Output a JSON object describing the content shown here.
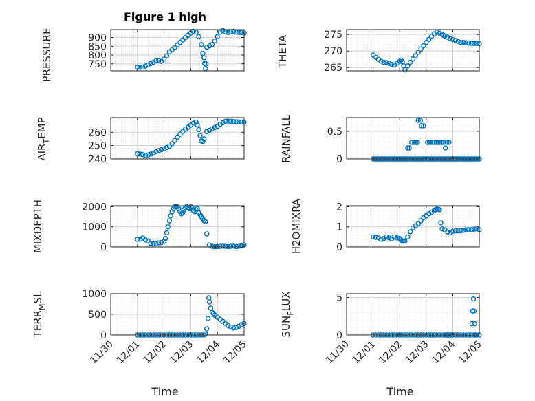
{
  "figure": {
    "title": "Figure 1 high"
  },
  "chart_data": [
    {
      "id": "pressure",
      "type": "scatter",
      "ylabel": "PRESSURE",
      "title": "Figure 1 high",
      "xlabel": "",
      "xlim": [
        "11/30",
        "12/05"
      ],
      "ylim": [
        710,
        945
      ],
      "yticks": [
        750,
        800,
        850,
        900
      ],
      "marker": "circle-open",
      "color": "#0072BD",
      "grid": "on",
      "x": [
        1.0,
        1.1,
        1.2,
        1.3,
        1.4,
        1.5,
        1.6,
        1.7,
        1.8,
        1.9,
        2.0,
        2.1,
        2.2,
        2.3,
        2.4,
        2.5,
        2.6,
        2.7,
        2.8,
        2.9,
        3.0,
        3.1,
        3.2,
        3.3,
        3.4,
        3.45,
        3.5,
        3.52,
        3.55,
        3.57,
        3.6,
        3.7,
        3.8,
        3.9,
        4.0,
        4.1,
        4.2,
        4.3,
        4.4,
        4.5,
        4.6,
        4.7,
        4.8,
        4.9,
        5.0
      ],
      "y": [
        730,
        730,
        732,
        737,
        744,
        751,
        759,
        767,
        768,
        765,
        777,
        795,
        818,
        830,
        843,
        858,
        872,
        886,
        900,
        913,
        925,
        935,
        930,
        905,
        860,
        810,
        785,
        752,
        722,
        750,
        845,
        852,
        860,
        880,
        905,
        930,
        940,
        932,
        928,
        932,
        935,
        930,
        928,
        928,
        925
      ]
    },
    {
      "id": "theta",
      "type": "scatter",
      "ylabel": "THETA",
      "xlim": [
        "11/30",
        "12/05"
      ],
      "ylim": [
        264,
        276.5
      ],
      "yticks": [
        265,
        270,
        275
      ],
      "marker": "circle-open",
      "color": "#0072BD",
      "grid": "on",
      "x": [
        1.0,
        1.1,
        1.2,
        1.3,
        1.4,
        1.5,
        1.6,
        1.7,
        1.8,
        1.9,
        2.0,
        2.05,
        2.1,
        2.15,
        2.2,
        2.3,
        2.4,
        2.5,
        2.6,
        2.7,
        2.8,
        2.9,
        3.0,
        3.1,
        3.2,
        3.3,
        3.4,
        3.5,
        3.6,
        3.65,
        3.7,
        3.8,
        3.9,
        4.0,
        4.1,
        4.2,
        4.3,
        4.4,
        4.5,
        4.6,
        4.7,
        4.8,
        4.9,
        5.0
      ],
      "y": [
        268.8,
        268.1,
        267.5,
        266.9,
        266.6,
        266.5,
        266.3,
        266.0,
        265.8,
        266.3,
        266.9,
        267.3,
        266.8,
        265.5,
        264.3,
        265.5,
        266.6,
        267.6,
        268.6,
        269.6,
        270.6,
        271.6,
        272.6,
        273.5,
        274.5,
        275.2,
        275.8,
        275.4,
        275.1,
        274.8,
        274.5,
        274.2,
        273.8,
        273.5,
        273.2,
        272.9,
        272.6,
        272.6,
        272.5,
        272.4,
        272.3,
        272.3,
        272.3,
        272.2
      ]
    },
    {
      "id": "air_temp",
      "type": "scatter",
      "ylabel": "AIR_TEMP",
      "xlim": [
        "11/30",
        "12/05"
      ],
      "ylim": [
        240,
        271
      ],
      "yticks": [
        240,
        250,
        260
      ],
      "marker": "circle-open",
      "color": "#0072BD",
      "grid": "on",
      "x": [
        1.0,
        1.1,
        1.2,
        1.3,
        1.4,
        1.5,
        1.6,
        1.7,
        1.8,
        1.9,
        2.0,
        2.1,
        2.2,
        2.3,
        2.4,
        2.5,
        2.6,
        2.7,
        2.8,
        2.9,
        3.0,
        3.1,
        3.2,
        3.25,
        3.3,
        3.35,
        3.4,
        3.45,
        3.5,
        3.6,
        3.7,
        3.8,
        3.9,
        4.0,
        4.1,
        4.2,
        4.3,
        4.4,
        4.5,
        4.6,
        4.7,
        4.8,
        4.9,
        5.0
      ],
      "y": [
        244,
        243.6,
        243.2,
        242.8,
        243,
        243.6,
        244.5,
        245.5,
        246.3,
        246.9,
        247.6,
        248.6,
        249.5,
        251.5,
        254,
        256.3,
        258.5,
        260.5,
        262.3,
        263.8,
        265.3,
        266.8,
        267.6,
        265.5,
        262,
        257.5,
        253.5,
        253,
        255,
        260.5,
        261.5,
        262.5,
        263.5,
        264.5,
        266,
        267.2,
        268.3,
        268.4,
        268.2,
        268.1,
        267.9,
        267.8,
        267.7,
        267.6
      ]
    },
    {
      "id": "rainfall",
      "type": "scatter",
      "ylabel": "RAINFALL",
      "xlim": [
        "11/30",
        "12/05"
      ],
      "ylim": [
        0,
        0.75
      ],
      "yticks": [
        0,
        0.5
      ],
      "marker": "circle-open",
      "color": "#0072BD",
      "grid": "on",
      "x": [
        1.0,
        1.05,
        1.1,
        1.15,
        1.2,
        1.25,
        1.3,
        1.35,
        1.4,
        1.45,
        1.5,
        1.55,
        1.6,
        1.65,
        1.7,
        1.75,
        1.8,
        1.85,
        1.9,
        1.95,
        2.0,
        2.05,
        2.1,
        2.15,
        2.2,
        2.25,
        2.3,
        2.35,
        2.4,
        2.45,
        2.5,
        2.55,
        2.6,
        2.65,
        2.7,
        2.75,
        2.8,
        2.85,
        2.9,
        2.95,
        3.0,
        3.05,
        3.1,
        3.15,
        3.2,
        3.25,
        3.3,
        3.35,
        3.4,
        3.45,
        3.5,
        3.55,
        3.6,
        3.65,
        3.7,
        3.75,
        3.8,
        3.85,
        3.9,
        3.95,
        4.0,
        4.05,
        4.1,
        4.15,
        4.2,
        4.25,
        4.3,
        4.35,
        4.4,
        4.45,
        4.5,
        4.55,
        4.6,
        4.65,
        4.7,
        4.75,
        4.8,
        4.85,
        4.9,
        4.95,
        5.0,
        2.3,
        2.36,
        2.45,
        2.55,
        2.62,
        2.67,
        2.7,
        2.78,
        2.82,
        2.9,
        3.05,
        3.12,
        3.18,
        3.25,
        3.3,
        3.38,
        3.45,
        3.52,
        3.58,
        3.65,
        3.72,
        3.78,
        3.86
      ],
      "y": [
        0,
        0,
        0,
        0,
        0,
        0,
        0,
        0,
        0,
        0,
        0,
        0,
        0,
        0,
        0,
        0,
        0,
        0,
        0,
        0,
        0,
        0,
        0,
        0,
        0,
        0,
        0,
        0,
        0,
        0,
        0,
        0,
        0,
        0,
        0,
        0,
        0,
        0,
        0,
        0,
        0,
        0,
        0,
        0,
        0,
        0,
        0,
        0,
        0,
        0,
        0,
        0,
        0,
        0,
        0,
        0,
        0,
        0,
        0,
        0,
        0,
        0,
        0,
        0,
        0,
        0,
        0,
        0,
        0,
        0,
        0,
        0,
        0,
        0,
        0,
        0,
        0,
        0,
        0,
        0,
        0,
        0.2,
        0.2,
        0.3,
        0.3,
        0.3,
        0.3,
        0.7,
        0.7,
        0.6,
        0.6,
        0.3,
        0.3,
        0.3,
        0.3,
        0.3,
        0.3,
        0.3,
        0.3,
        0.3,
        0.3,
        0.2,
        0.3,
        0.3
      ]
    },
    {
      "id": "mixdepth",
      "type": "scatter",
      "ylabel": "MIXDEPTH",
      "xlim": [
        "11/30",
        "12/05"
      ],
      "ylim": [
        0,
        2050
      ],
      "yticks": [
        0,
        1000,
        2000
      ],
      "marker": "circle-open",
      "color": "#0072BD",
      "grid": "on",
      "x": [
        1.0,
        1.1,
        1.2,
        1.3,
        1.4,
        1.5,
        1.6,
        1.7,
        1.8,
        1.9,
        2.0,
        2.05,
        2.1,
        2.15,
        2.2,
        2.25,
        2.3,
        2.35,
        2.4,
        2.45,
        2.5,
        2.55,
        2.6,
        2.65,
        2.7,
        2.75,
        2.8,
        2.85,
        2.9,
        2.95,
        3.0,
        3.05,
        3.1,
        3.15,
        3.2,
        3.25,
        3.3,
        3.35,
        3.4,
        3.45,
        3.5,
        3.55,
        3.6,
        3.7,
        3.8,
        3.9,
        4.0,
        4.1,
        4.2,
        4.3,
        4.4,
        4.5,
        4.6,
        4.7,
        4.8,
        4.9,
        5.0
      ],
      "y": [
        380,
        380,
        450,
        350,
        300,
        180,
        150,
        160,
        200,
        220,
        280,
        420,
        700,
        1000,
        1300,
        1550,
        1750,
        1900,
        2000,
        2000,
        2000,
        1900,
        1750,
        1650,
        1700,
        1850,
        1950,
        2000,
        1950,
        1900,
        2000,
        1950,
        1800,
        1750,
        1850,
        1900,
        1700,
        1600,
        1500,
        1400,
        1300,
        1250,
        650,
        100,
        30,
        10,
        20,
        30,
        40,
        30,
        20,
        30,
        40,
        20,
        30,
        60,
        100
      ]
    },
    {
      "id": "h2omixra",
      "type": "scatter",
      "ylabel": "H2OMIXRA",
      "xlim": [
        "11/30",
        "12/05"
      ],
      "ylim": [
        0,
        2.05
      ],
      "yticks": [
        0,
        1,
        2
      ],
      "marker": "circle-open",
      "color": "#0072BD",
      "grid": "on",
      "x": [
        1.0,
        1.1,
        1.2,
        1.3,
        1.4,
        1.5,
        1.6,
        1.7,
        1.8,
        1.9,
        2.0,
        2.05,
        2.1,
        2.15,
        2.2,
        2.3,
        2.4,
        2.5,
        2.6,
        2.7,
        2.8,
        2.9,
        3.0,
        3.1,
        3.2,
        3.3,
        3.35,
        3.4,
        3.45,
        3.5,
        3.55,
        3.6,
        3.7,
        3.8,
        3.9,
        4.0,
        4.1,
        4.2,
        4.3,
        4.4,
        4.5,
        4.6,
        4.7,
        4.8,
        4.9,
        5.0
      ],
      "y": [
        0.5,
        0.48,
        0.45,
        0.38,
        0.42,
        0.5,
        0.45,
        0.4,
        0.5,
        0.45,
        0.42,
        0.35,
        0.3,
        0.28,
        0.3,
        0.5,
        0.75,
        0.95,
        1.05,
        1.15,
        1.3,
        1.45,
        1.55,
        1.65,
        1.72,
        1.8,
        1.85,
        1.9,
        1.88,
        1.85,
        1.2,
        0.9,
        0.85,
        0.75,
        0.7,
        0.78,
        0.8,
        0.8,
        0.8,
        0.82,
        0.85,
        0.85,
        0.85,
        0.88,
        0.9,
        0.85
      ]
    },
    {
      "id": "terr_msl",
      "type": "scatter",
      "ylabel": "TERR_MSL",
      "xlim": [
        "11/30",
        "12/05"
      ],
      "ylim": [
        0,
        1000
      ],
      "yticks": [
        0,
        500,
        1000
      ],
      "marker": "circle-open",
      "color": "#0072BD",
      "grid": "on",
      "x": [
        1.0,
        1.1,
        1.2,
        1.3,
        1.4,
        1.5,
        1.6,
        1.7,
        1.8,
        1.9,
        2.0,
        2.1,
        2.2,
        2.3,
        2.4,
        2.5,
        2.6,
        2.7,
        2.8,
        2.9,
        3.0,
        3.1,
        3.2,
        3.3,
        3.4,
        3.5,
        3.55,
        3.6,
        3.65,
        3.68,
        3.7,
        3.75,
        3.8,
        3.85,
        3.9,
        4.0,
        4.1,
        4.2,
        4.3,
        4.4,
        4.5,
        4.6,
        4.7,
        4.8,
        4.9,
        5.0
      ],
      "y": [
        0,
        0,
        0,
        0,
        0,
        0,
        0,
        0,
        0,
        0,
        0,
        0,
        0,
        0,
        0,
        0,
        0,
        0,
        0,
        0,
        0,
        0,
        0,
        0,
        0,
        0,
        30,
        150,
        400,
        900,
        800,
        650,
        550,
        520,
        480,
        430,
        380,
        330,
        280,
        230,
        190,
        170,
        180,
        210,
        250,
        280
      ]
    },
    {
      "id": "sun_flux",
      "type": "scatter",
      "ylabel": "SUN_FLUX",
      "xlabel": "Time",
      "xlim": [
        "11/30",
        "12/05"
      ],
      "ylim": [
        0,
        5.5
      ],
      "yticks": [
        0,
        5
      ],
      "marker": "circle-open",
      "color": "#0072BD",
      "grid": "on",
      "x": [
        1.0,
        1.1,
        1.2,
        1.3,
        1.4,
        1.5,
        1.6,
        1.7,
        1.8,
        1.9,
        2.0,
        2.1,
        2.2,
        2.3,
        2.4,
        2.5,
        2.6,
        2.7,
        2.8,
        2.9,
        3.0,
        3.1,
        3.2,
        3.3,
        3.4,
        3.5,
        3.6,
        3.7,
        3.75,
        3.78,
        3.8,
        3.82,
        3.85,
        3.9,
        3.95,
        4.0,
        4.1,
        4.2,
        4.3,
        4.4,
        4.5,
        4.6,
        4.7,
        4.8,
        4.9,
        5.0,
        4.72,
        4.75,
        4.78,
        4.8,
        4.82,
        4.85
      ],
      "y": [
        0,
        0,
        0,
        0,
        0,
        0,
        0,
        0,
        0,
        0,
        0,
        0,
        0,
        0,
        0,
        0,
        0,
        0,
        0,
        0,
        0,
        0,
        0,
        0,
        0,
        0,
        0,
        0,
        0,
        0,
        0,
        0,
        0,
        0,
        0,
        0,
        0,
        0,
        0,
        0,
        0,
        0,
        0,
        0,
        0,
        0,
        1.5,
        3.2,
        4.8,
        3.2,
        1.5,
        0
      ]
    }
  ],
  "x_axis": {
    "ticks": [
      "11/30",
      "12/01",
      "12/02",
      "12/03",
      "12/04",
      "12/05"
    ],
    "label": "Time"
  },
  "labels": {
    "pressure": "PRESSURE",
    "theta": "THETA",
    "air_temp_main": "AIR",
    "air_temp_sub": "T",
    "air_temp_rest": "EMP",
    "rainfall": "RAINFALL",
    "mixdepth": "MIXDEPTH",
    "h2omixra": "H2OMIXRA",
    "terr_main": "TERR",
    "terr_sub": "M",
    "terr_rest": "SL",
    "sun_main": "SUN",
    "sun_sub": "F",
    "sun_rest": "LUX",
    "time_left": "Time",
    "time_right": "Time"
  },
  "colors": {
    "marker": "#0072BD",
    "axis": "#262626",
    "grid": "#e0e0e0"
  }
}
